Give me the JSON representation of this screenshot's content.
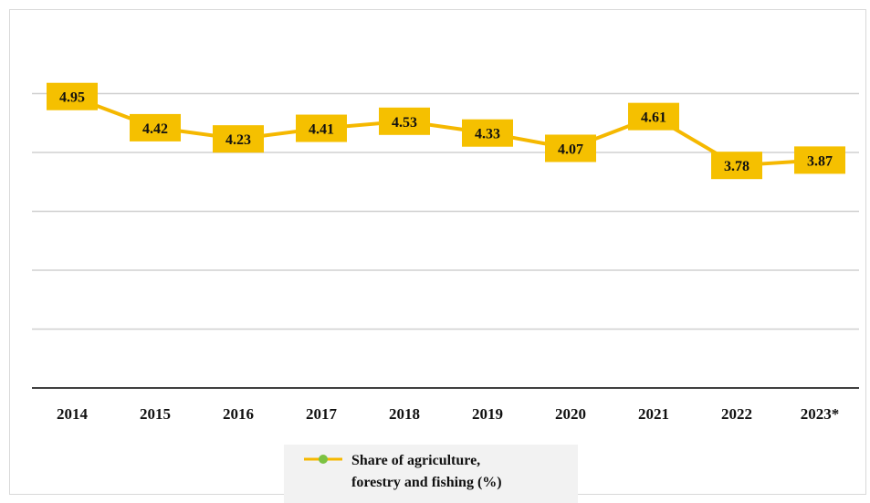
{
  "chart_data": {
    "type": "line",
    "categories": [
      "2014",
      "2015",
      "2016",
      "2017",
      "2018",
      "2019",
      "2020",
      "2021",
      "2022",
      "2023*"
    ],
    "series": [
      {
        "name": "Share of agriculture,\nforestry and fishing (%)",
        "values": [
          4.95,
          4.42,
          4.23,
          4.41,
          4.53,
          4.33,
          4.07,
          4.61,
          3.78,
          3.87
        ],
        "data_labels": [
          "4.95",
          "4.42",
          "4.23",
          "4.41",
          "4.53",
          "4.33",
          "4.07",
          "4.61",
          "3.78",
          "3.87"
        ],
        "line_color": "#f5b800",
        "marker_color": "#7cc242",
        "label_bg": "#f5c000"
      }
    ],
    "ylim": [
      0,
      6
    ],
    "y_gridlines": [
      1,
      2,
      3,
      4,
      5
    ],
    "grid": true,
    "y_axis_labels_shown": false,
    "legend_position": "bottom",
    "gridline_color": "#d0d0d0",
    "axis_color": "#404040"
  }
}
